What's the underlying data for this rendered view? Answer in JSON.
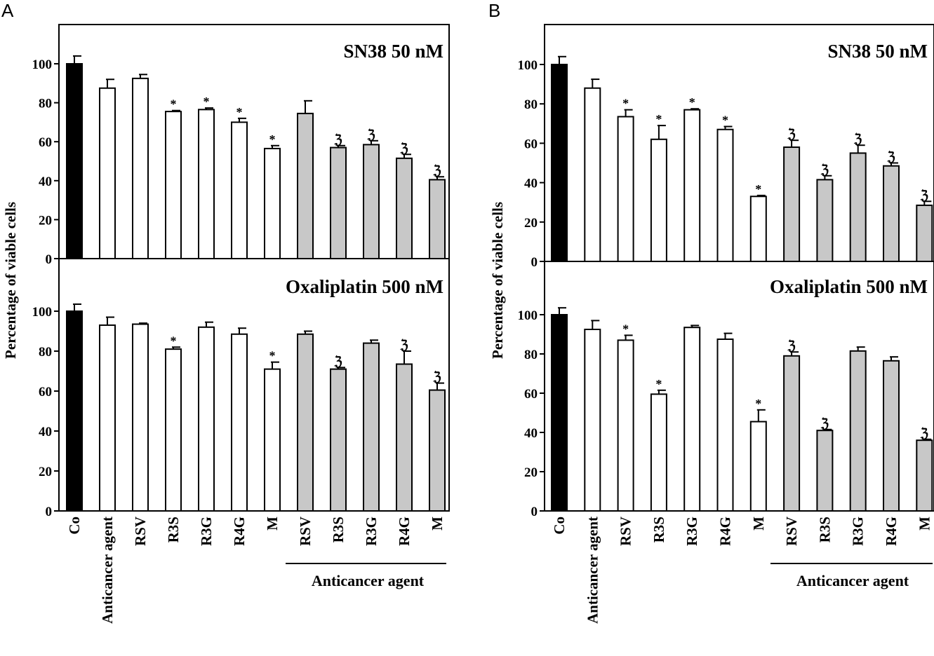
{
  "chart_data": {
    "type": "bar",
    "categories": [
      "Co",
      "Anticancer agent",
      "RSV",
      "R3S",
      "R3G",
      "R4G",
      "M",
      "RSV",
      "R3S",
      "R3G",
      "R4G",
      "M"
    ],
    "group_label": "Anticancer agent",
    "ylabel": "Percentage of viable cells",
    "bar_colors": {
      "control": "#000000",
      "single": "#ffffff",
      "combination": "#c8c8c8"
    },
    "panels": [
      {
        "letter": "A",
        "subplots": [
          {
            "title": "SN38 50 nM",
            "ylim": [
              0,
              120
            ],
            "yticks": [
              0,
              20,
              40,
              60,
              80,
              100
            ],
            "values": [
              100,
              87.5,
              92.5,
              75.5,
              76.5,
              70,
              56.5,
              74.5,
              57,
              58.5,
              51.5,
              40.5
            ],
            "errors": [
              4,
              4.5,
              2,
              0.5,
              0.8,
              2,
              1.5,
              6.5,
              1,
              2,
              2,
              1.5
            ],
            "marks": [
              "",
              "",
              "",
              "*",
              "*",
              "*",
              "*",
              "",
              "ℨ",
              "ℨ",
              "ℨ",
              "ℨ"
            ]
          },
          {
            "title": "Oxaliplatin 500 nM",
            "ylim": [
              0,
              120
            ],
            "yticks": [
              0,
              20,
              40,
              60,
              80,
              100
            ],
            "values": [
              100,
              93,
              93.5,
              81,
              92,
              88.5,
              71,
              88.5,
              71,
              84,
              73.5,
              60.5
            ],
            "errors": [
              3.5,
              4,
              0.5,
              1,
              2.5,
              3,
              3.5,
              1.5,
              0.8,
              1.5,
              6.5,
              3.5
            ],
            "marks": [
              "",
              "",
              "",
              "*",
              "",
              "",
              "*",
              "",
              "ℨ",
              "",
              "ℨ",
              "ℨ"
            ]
          }
        ]
      },
      {
        "letter": "B",
        "subplots": [
          {
            "title": "SN38 50 nM",
            "ylim": [
              0,
              120
            ],
            "yticks": [
              0,
              20,
              40,
              60,
              80,
              100
            ],
            "values": [
              100,
              88,
              73.5,
              62,
              77,
              67,
              33,
              58,
              41.5,
              55,
              48.5,
              28.5
            ],
            "errors": [
              4,
              4.5,
              3.5,
              7,
              0.5,
              1.5,
              0.5,
              3.5,
              2,
              4,
              1.5,
              2
            ],
            "marks": [
              "",
              "",
              "*",
              "*",
              "*",
              "*",
              "*",
              "ℨ",
              "ℨ",
              "ℨ",
              "ℨ",
              "ℨ"
            ]
          },
          {
            "title": "Oxaliplatin 500 nM",
            "ylim": [
              0,
              120
            ],
            "yticks": [
              0,
              20,
              40,
              60,
              80,
              100
            ],
            "values": [
              100,
              92.5,
              87,
              59.5,
              93.5,
              87.5,
              45.5,
              79,
              41,
              81.5,
              76.5,
              36
            ],
            "errors": [
              3.5,
              4.5,
              2.5,
              2,
              1,
              3,
              6,
              2,
              0.5,
              2,
              2,
              0.5
            ],
            "marks": [
              "",
              "",
              "*",
              "*",
              "",
              "",
              "*",
              "ℨ",
              "ℨ",
              "",
              "",
              "ℨ"
            ]
          }
        ]
      }
    ]
  }
}
